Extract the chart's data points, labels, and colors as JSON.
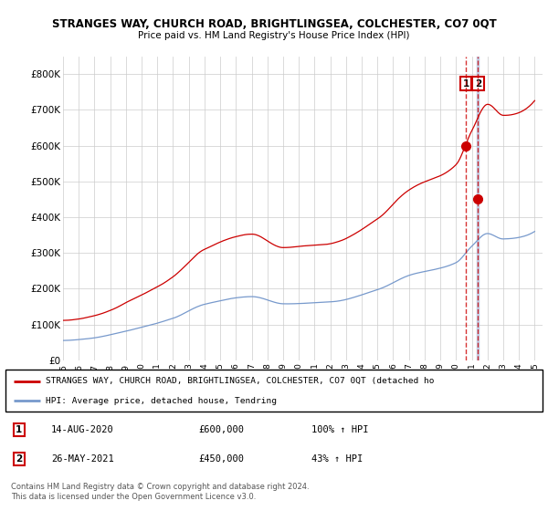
{
  "title": "STRANGES WAY, CHURCH ROAD, BRIGHTLINGSEA, COLCHESTER, CO7 0QT",
  "subtitle": "Price paid vs. HM Land Registry's House Price Index (HPI)",
  "red_label": "STRANGES WAY, CHURCH ROAD, BRIGHTLINGSEA, COLCHESTER, CO7 0QT (detached ho",
  "blue_label": "HPI: Average price, detached house, Tendring",
  "transaction1_date": "14-AUG-2020",
  "transaction1_price": "£600,000",
  "transaction1_hpi": "100% ↑ HPI",
  "transaction2_date": "26-MAY-2021",
  "transaction2_price": "£450,000",
  "transaction2_hpi": "43% ↑ HPI",
  "footer": "Contains HM Land Registry data © Crown copyright and database right 2024.\nThis data is licensed under the Open Government Licence v3.0.",
  "ylim": [
    0,
    850000
  ],
  "yticks": [
    0,
    100000,
    200000,
    300000,
    400000,
    500000,
    600000,
    700000,
    800000
  ],
  "ytick_labels": [
    "£0",
    "£100K",
    "£200K",
    "£300K",
    "£400K",
    "£500K",
    "£600K",
    "£700K",
    "£800K"
  ],
  "red_color": "#cc0000",
  "blue_color": "#7799cc",
  "marker1_x": 2020.62,
  "marker2_x": 2021.4,
  "marker1_y": 600000,
  "marker2_y": 450000,
  "bg_color": "#ffffff",
  "grid_color": "#cccccc",
  "xlim_left": 1995,
  "xlim_right": 2025.5,
  "xtick_years": [
    1995,
    1996,
    1997,
    1998,
    1999,
    2000,
    2001,
    2002,
    2003,
    2004,
    2005,
    2006,
    2007,
    2008,
    2009,
    2010,
    2011,
    2012,
    2013,
    2014,
    2015,
    2016,
    2017,
    2018,
    2019,
    2020,
    2021,
    2022,
    2023,
    2024,
    2025
  ]
}
